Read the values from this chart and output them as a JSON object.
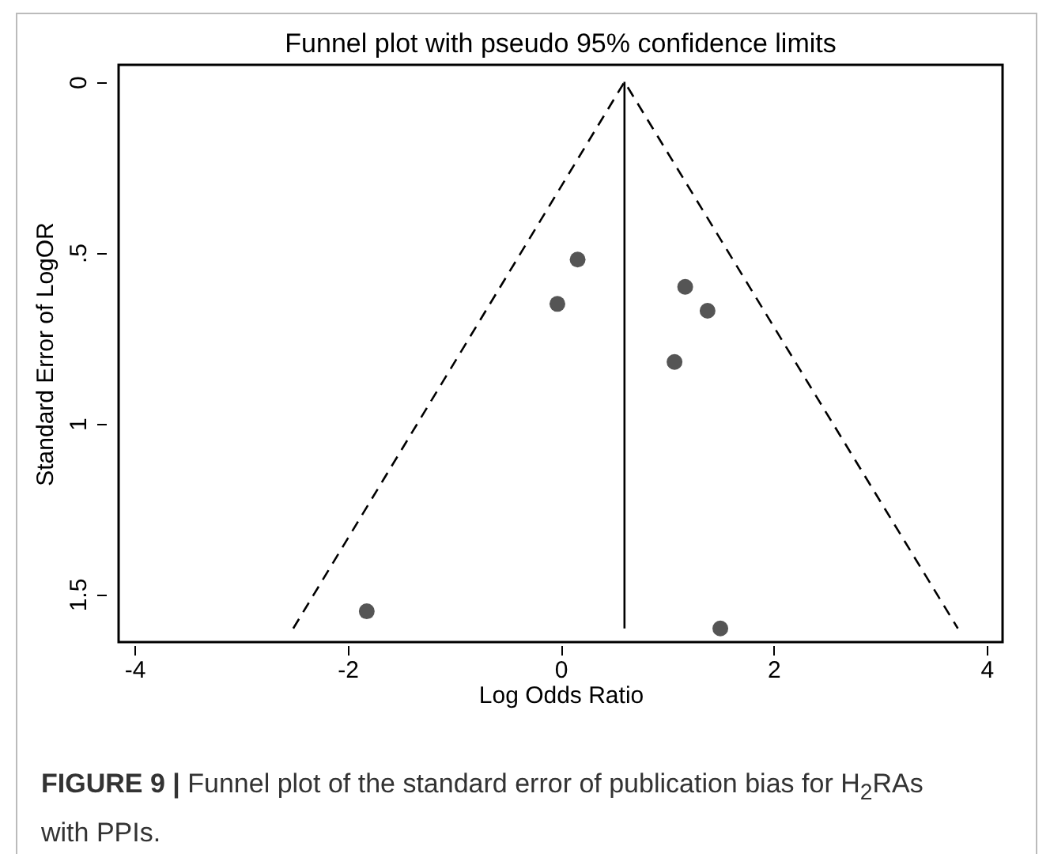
{
  "chart_data": {
    "type": "scatter",
    "title": "Funnel plot with pseudo 95% confidence limits",
    "xlabel": "Log Odds Ratio",
    "ylabel": "Standard Error of LogOR",
    "xlim": [
      -4.15,
      4.15
    ],
    "xticks": [
      -4,
      -2,
      0,
      2,
      4
    ],
    "ylim": [
      1.64,
      -0.05
    ],
    "yticks": [
      0,
      {
        "value": 0.5,
        "label": ".5"
      },
      1,
      1.5
    ],
    "grid": false,
    "marker": "circle",
    "series": [
      {
        "color": "#555555",
        "x": [
          0.16,
          -0.03,
          1.17,
          1.38,
          1.07,
          -1.82,
          1.5
        ],
        "values": [
          0.52,
          0.65,
          0.6,
          0.67,
          0.82,
          1.55,
          1.6
        ]
      },
      {
        "type": "line",
        "color": "#000000",
        "line_style": "dashed",
        "marker": "none",
        "x": [
          -2.51,
          0.6,
          3.73
        ],
        "values": [
          1.6,
          0,
          1.6
        ]
      },
      {
        "type": "line",
        "color": "#000000",
        "line_style": "solid",
        "marker": "none",
        "x": [
          0.6,
          0.6
        ],
        "values": [
          0,
          1.6
        ]
      }
    ],
    "annotations": [
      "FIGURE 9 | Funnel plot of the standard error of publication bias for H$_{2}$RAs with PPIs."
    ]
  }
}
